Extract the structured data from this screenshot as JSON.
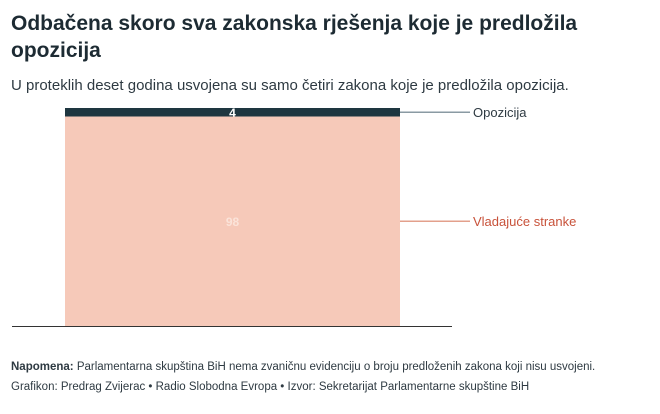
{
  "header": {
    "title": "Odbačena skoro sva zakonska rješenja koje je predložila opozicija",
    "subtitle": "U proteklih deset godina usvojena su samo četiri zakona koje je predložila opozicija."
  },
  "chart_data": {
    "type": "bar",
    "stacked": true,
    "categories": [
      ""
    ],
    "series": [
      {
        "name": "Opozicija",
        "values": [
          4
        ],
        "color": "#1e3640"
      },
      {
        "name": "Vladajuće stranke",
        "values": [
          98
        ],
        "color": "#f6c9b9"
      }
    ],
    "value_label_colors": [
      "#ffffff",
      "#fbe3d9"
    ],
    "legend_label_colors": [
      "#2e3a42",
      "#c8523a"
    ],
    "legend_line_colors": [
      "#8a9aa3",
      "#e3a08c"
    ],
    "ylim": [
      0,
      102
    ],
    "grid": false,
    "legend": "right"
  },
  "footer": {
    "note_label": "Napomena:",
    "note_text": " Parlamentarna skupština BiH nema zvaničnu evidenciju o broju predloženih zakona koji nisu usvojeni.",
    "credits": "Grafikon: Predrag Zvijerac • Radio Slobodna Evropa • Izvor: Sekretarijat Parlamentarne skupštine BiH"
  }
}
